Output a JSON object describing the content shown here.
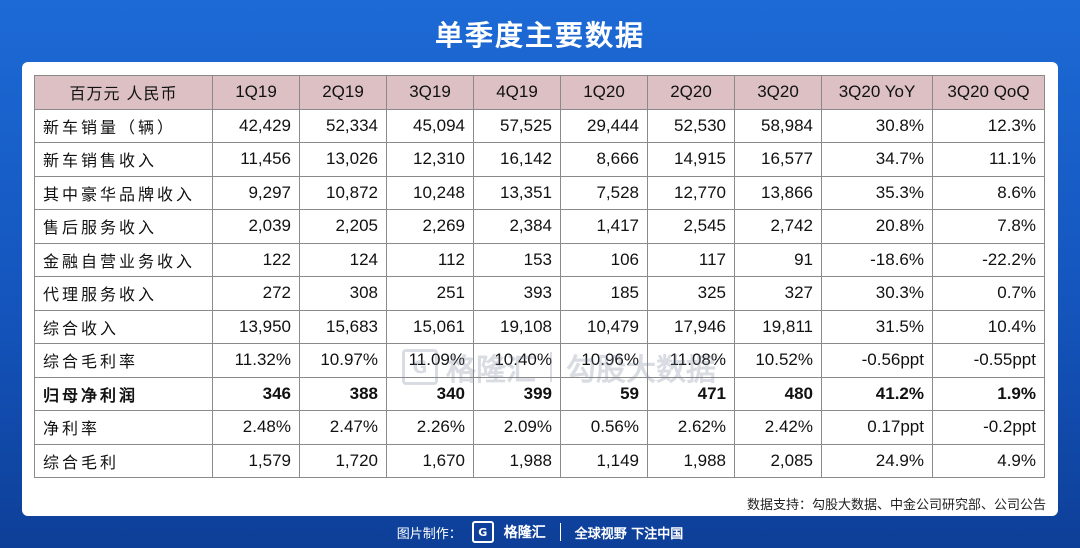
{
  "title": "单季度主要数据",
  "table": {
    "headers": [
      "百万元 人民币",
      "1Q19",
      "2Q19",
      "3Q19",
      "4Q19",
      "1Q20",
      "2Q20",
      "3Q20",
      "3Q20 YoY",
      "3Q20 QoQ"
    ],
    "rows": [
      [
        "新车销量（辆）",
        "42,429",
        "52,334",
        "45,094",
        "57,525",
        "29,444",
        "52,530",
        "58,984",
        "30.8%",
        "12.3%"
      ],
      [
        "新车销售收入",
        "11,456",
        "13,026",
        "12,310",
        "16,142",
        "8,666",
        "14,915",
        "16,577",
        "34.7%",
        "11.1%"
      ],
      [
        "其中豪华品牌收入",
        "9,297",
        "10,872",
        "10,248",
        "13,351",
        "7,528",
        "12,770",
        "13,866",
        "35.3%",
        "8.6%"
      ],
      [
        "售后服务收入",
        "2,039",
        "2,205",
        "2,269",
        "2,384",
        "1,417",
        "2,545",
        "2,742",
        "20.8%",
        "7.8%"
      ],
      [
        "金融自营业务收入",
        "122",
        "124",
        "112",
        "153",
        "106",
        "117",
        "91",
        "-18.6%",
        "-22.2%"
      ],
      [
        "代理服务收入",
        "272",
        "308",
        "251",
        "393",
        "185",
        "325",
        "327",
        "30.3%",
        "0.7%"
      ],
      [
        "综合收入",
        "13,950",
        "15,683",
        "15,061",
        "19,108",
        "10,479",
        "17,946",
        "19,811",
        "31.5%",
        "10.4%"
      ],
      [
        "综合毛利率",
        "11.32%",
        "10.97%",
        "11.09%",
        "10.40%",
        "10.96%",
        "11.08%",
        "10.52%",
        "-0.56ppt",
        "-0.55ppt"
      ],
      [
        "归母净利润",
        "346",
        "388",
        "340",
        "399",
        "59",
        "471",
        "480",
        "41.2%",
        "1.9%"
      ],
      [
        "净利率",
        "2.48%",
        "2.47%",
        "2.26%",
        "2.09%",
        "0.56%",
        "2.62%",
        "2.42%",
        "0.17ppt",
        "-0.2ppt"
      ],
      [
        "综合毛利",
        "1,579",
        "1,720",
        "1,670",
        "1,988",
        "1,149",
        "1,988",
        "2,085",
        "24.9%",
        "4.9%"
      ]
    ],
    "bold_row_index": 8
  },
  "source": "数据支持：勾股大数据、中金公司研究部、公司公告",
  "watermark": {
    "logo_glyph": "G",
    "brand": "格隆汇",
    "text": "勾股大数据"
  },
  "footer": {
    "made_by": "图片制作：",
    "logo_glyph": "G",
    "brand": "格隆汇",
    "slogan": "全球视野 下注中国"
  },
  "colors": {
    "background": "#1455bd",
    "header_fill": "#dcc0c3",
    "card": "#ffffff"
  }
}
